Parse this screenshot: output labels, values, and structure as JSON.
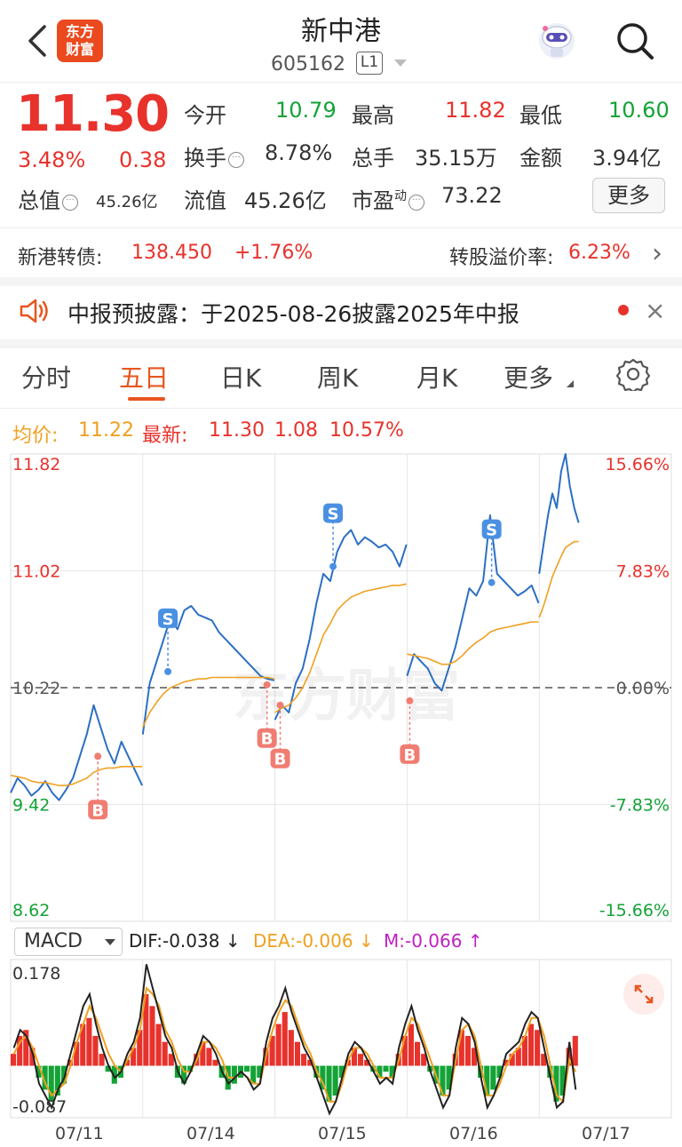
{
  "header": {
    "logo_line1": "东方",
    "logo_line2": "财富",
    "title": "新中港",
    "code": "605162",
    "level": "L1",
    "icons": [
      "back-arrow-icon",
      "robot-avatar-icon",
      "search-icon"
    ]
  },
  "quote": {
    "price": "11.30",
    "change_pct": "3.48%",
    "change": "0.38",
    "total_value_label": "总值",
    "total_value": "45.26亿",
    "open_label": "今开",
    "open": "10.79",
    "high_label": "最高",
    "high": "11.82",
    "low_label": "最低",
    "low": "10.60",
    "turnover_label": "换手",
    "turnover": "8.78%",
    "volume_label": "总手",
    "volume": "35.15万",
    "amount_label": "金额",
    "amount": "3.94亿",
    "float_label": "流值",
    "float_value": "45.26亿",
    "pe_label": "市盈",
    "pe_sup": "动",
    "pe": "73.22",
    "more_button": "更多",
    "info_dots": "···"
  },
  "bond": {
    "label": "新港转债:",
    "price": "138.450",
    "change": "+1.76%",
    "premium_label": "转股溢价率:",
    "premium": "6.23%",
    "chevron": "›"
  },
  "notice": {
    "text": "中报预披露：于2025-08-26披露2025年中报",
    "close": "×"
  },
  "tabs": [
    {
      "label": "分时",
      "active": false
    },
    {
      "label": "五日",
      "active": true
    },
    {
      "label": "日K",
      "active": false
    },
    {
      "label": "周K",
      "active": false
    },
    {
      "label": "月K",
      "active": false
    },
    {
      "label": "更多",
      "active": false
    }
  ],
  "legend": {
    "avg_label": "均价:",
    "avg": "11.22",
    "latest_label": "最新:",
    "latest": "11.30",
    "latest_change": "1.08",
    "latest_pct": "10.57%"
  },
  "chart_data": [
    {
      "type": "line",
      "title": "",
      "y_ticks_left": [
        "11.82",
        "11.02",
        "10.22",
        "9.42",
        "8.62"
      ],
      "y_ticks_right": [
        "15.66%",
        "7.83%",
        "0.00%",
        "-7.83%",
        "-15.66%"
      ],
      "ylim": [
        8.62,
        11.82
      ],
      "baseline": 10.22,
      "watermark": "东方财富",
      "days": [
        "07/11",
        "07/14",
        "07/15",
        "07/16",
        "07/17"
      ],
      "series": [
        {
          "name": "price",
          "color": "#2c6fc3",
          "values": [
            [
              9.5,
              9.6,
              9.55,
              9.48,
              9.52,
              9.58,
              9.5,
              9.45,
              9.52,
              9.6,
              9.75,
              9.9,
              10.1,
              9.95,
              9.8,
              9.7,
              9.85,
              9.75,
              9.65,
              9.55
            ],
            [
              9.9,
              10.25,
              10.4,
              10.55,
              10.7,
              10.62,
              10.75,
              10.78,
              10.72,
              10.7,
              10.68,
              10.6,
              10.55,
              10.5,
              10.45,
              10.4,
              10.35,
              10.3,
              10.28,
              10.27
            ],
            [
              10.0,
              10.1,
              10.05,
              10.25,
              10.35,
              10.55,
              10.8,
              11.0,
              10.95,
              11.15,
              11.25,
              11.3,
              11.2,
              11.25,
              11.22,
              11.18,
              11.2,
              11.15,
              11.05,
              11.2
            ],
            [
              10.3,
              10.45,
              10.4,
              10.35,
              10.25,
              10.2,
              10.35,
              10.5,
              10.7,
              10.9,
              10.85,
              10.95,
              11.4,
              11.0,
              10.95,
              10.9,
              10.85,
              10.88,
              10.92,
              10.8
            ],
            [
              11.0,
              11.2,
              11.4,
              11.55,
              11.45,
              11.7,
              11.82,
              11.6,
              11.45,
              11.35
            ]
          ]
        },
        {
          "name": "average",
          "color": "#f0a020",
          "values": [
            [
              9.62,
              9.61,
              9.6,
              9.58,
              9.57,
              9.57,
              9.56,
              9.55,
              9.55,
              9.56,
              9.58,
              9.6,
              9.64,
              9.66,
              9.67,
              9.67,
              9.68,
              9.68,
              9.68,
              9.68
            ],
            [
              9.95,
              10.05,
              10.12,
              10.18,
              10.22,
              10.24,
              10.26,
              10.27,
              10.28,
              10.28,
              10.29,
              10.29,
              10.29,
              10.29,
              10.29,
              10.29,
              10.29,
              10.29,
              10.29,
              10.28
            ],
            [
              10.05,
              10.08,
              10.1,
              10.15,
              10.22,
              10.32,
              10.45,
              10.58,
              10.66,
              10.75,
              10.8,
              10.84,
              10.86,
              10.88,
              10.89,
              10.9,
              10.91,
              10.92,
              10.92,
              10.93
            ],
            [
              10.45,
              10.44,
              10.43,
              10.42,
              10.4,
              10.38,
              10.38,
              10.4,
              10.44,
              10.49,
              10.53,
              10.56,
              10.6,
              10.62,
              10.63,
              10.64,
              10.65,
              10.66,
              10.67,
              10.67
            ],
            [
              10.7,
              10.78,
              10.88,
              10.98,
              11.05,
              11.12,
              11.18,
              11.2,
              11.22,
              11.22
            ]
          ]
        }
      ],
      "trade_marks": [
        {
          "label": "B",
          "day": 0,
          "pos": 0.66,
          "price": 9.75
        },
        {
          "label": "S",
          "day": 1,
          "pos": 0.19,
          "price": 10.33
        },
        {
          "label": "B",
          "day": 1,
          "pos": 0.94,
          "price": 10.24
        },
        {
          "label": "B",
          "day": 2,
          "pos": 0.04,
          "price": 10.1
        },
        {
          "label": "S",
          "day": 2,
          "pos": 0.44,
          "price": 11.05
        },
        {
          "label": "B",
          "day": 3,
          "pos": 0.02,
          "price": 10.13
        },
        {
          "label": "S",
          "day": 3,
          "pos": 0.64,
          "price": 10.94
        }
      ],
      "mark_colors": {
        "B": "#f07d72",
        "S": "#4a90e2"
      }
    },
    {
      "type": "bar",
      "title": "",
      "indicator": "MACD",
      "ylim": [
        -0.087,
        0.178
      ],
      "y_ticks": [
        "0.178",
        "-0.087"
      ],
      "dif_label": "DIF:-0.038",
      "dif_arrow": "↓",
      "dea_label": "DEA:-0.006",
      "dea_arrow": "↓",
      "m_label": "M:-0.066",
      "m_arrow": "↑",
      "colors": {
        "up": "#e8322c",
        "down": "#13a336",
        "dif": "#222222",
        "dea": "#f0a020",
        "m": "#c020c0"
      },
      "histogram": [
        0.02,
        0.05,
        0.06,
        0.03,
        -0.02,
        -0.04,
        -0.06,
        -0.05,
        -0.03,
        0.01,
        0.04,
        0.07,
        0.08,
        0.05,
        0.02,
        -0.01,
        -0.03,
        -0.02,
        0.01,
        0.03,
        0.06,
        0.12,
        0.1,
        0.07,
        0.04,
        0.02,
        -0.02,
        -0.03,
        -0.01,
        0.02,
        0.04,
        0.03,
        0.01,
        -0.02,
        -0.04,
        -0.03,
        -0.02,
        -0.01,
        -0.03,
        -0.02,
        0.03,
        0.05,
        0.07,
        0.09,
        0.06,
        0.04,
        0.02,
        0.01,
        -0.02,
        -0.04,
        -0.06,
        -0.05,
        -0.02,
        0.01,
        0.03,
        0.02,
        0.01,
        -0.01,
        -0.02,
        -0.01,
        -0.02,
        0.02,
        0.05,
        0.07,
        0.04,
        0.02,
        -0.01,
        -0.03,
        -0.05,
        -0.04,
        0.02,
        0.06,
        0.05,
        0.03,
        -0.02,
        -0.05,
        -0.04,
        -0.02,
        0.01,
        0.02,
        0.03,
        0.05,
        0.07,
        0.06,
        0.02,
        -0.02,
        -0.06,
        -0.05,
        0.03,
        0.05
      ],
      "dif": [
        0.03,
        0.06,
        0.05,
        0.02,
        -0.03,
        -0.05,
        -0.07,
        -0.04,
        -0.02,
        0.02,
        0.06,
        0.1,
        0.12,
        0.07,
        0.03,
        0.0,
        -0.02,
        -0.01,
        0.02,
        0.04,
        0.08,
        0.17,
        0.13,
        0.09,
        0.05,
        0.03,
        -0.01,
        -0.03,
        -0.01,
        0.02,
        0.05,
        0.04,
        0.02,
        -0.01,
        -0.03,
        -0.02,
        -0.01,
        -0.02,
        -0.04,
        -0.03,
        0.04,
        0.08,
        0.1,
        0.13,
        0.09,
        0.06,
        0.03,
        0.01,
        -0.02,
        -0.05,
        -0.08,
        -0.06,
        -0.02,
        0.02,
        0.04,
        0.03,
        0.01,
        -0.01,
        -0.03,
        -0.02,
        -0.03,
        0.03,
        0.07,
        0.1,
        0.06,
        0.03,
        -0.01,
        -0.04,
        -0.07,
        -0.05,
        0.03,
        0.08,
        0.07,
        0.04,
        -0.02,
        -0.07,
        -0.05,
        -0.02,
        0.02,
        0.03,
        0.04,
        0.07,
        0.09,
        0.08,
        0.03,
        -0.02,
        -0.07,
        -0.06,
        0.04,
        -0.04
      ],
      "dea": [
        0.02,
        0.04,
        0.05,
        0.03,
        0.0,
        -0.03,
        -0.05,
        -0.04,
        -0.03,
        0.0,
        0.04,
        0.07,
        0.1,
        0.08,
        0.05,
        0.02,
        0.0,
        -0.01,
        0.01,
        0.03,
        0.06,
        0.13,
        0.12,
        0.1,
        0.06,
        0.04,
        0.01,
        -0.01,
        -0.01,
        0.01,
        0.04,
        0.04,
        0.03,
        0.01,
        -0.02,
        -0.02,
        -0.01,
        -0.02,
        -0.03,
        -0.03,
        0.02,
        0.06,
        0.09,
        0.11,
        0.1,
        0.07,
        0.04,
        0.02,
        -0.01,
        -0.03,
        -0.06,
        -0.06,
        -0.03,
        0.01,
        0.03,
        0.03,
        0.02,
        0.0,
        -0.02,
        -0.02,
        -0.02,
        0.01,
        0.05,
        0.08,
        0.07,
        0.04,
        0.01,
        -0.02,
        -0.05,
        -0.05,
        0.01,
        0.06,
        0.07,
        0.05,
        0.0,
        -0.05,
        -0.05,
        -0.03,
        0.0,
        0.02,
        0.03,
        0.05,
        0.08,
        0.08,
        0.05,
        0.0,
        -0.05,
        -0.06,
        0.01,
        -0.01
      ]
    }
  ]
}
